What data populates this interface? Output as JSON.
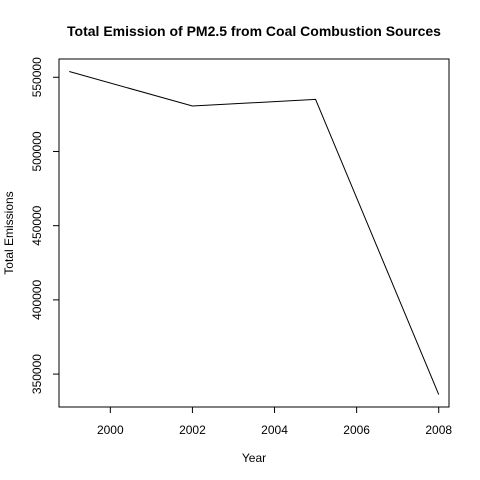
{
  "chart_data": {
    "type": "line",
    "title": "Total Emission of PM2.5 from Coal Combustion Sources",
    "xlabel": "Year",
    "ylabel": "Total Emissions",
    "x": [
      1999,
      2002,
      2005,
      2008
    ],
    "y": [
      553891,
      530620,
      535068,
      336230
    ],
    "xlim": [
      1998.75,
      2008.25
    ],
    "ylim": [
      327815,
      562306
    ],
    "xticks": [
      2000,
      2002,
      2004,
      2006,
      2008
    ],
    "yticks": [
      350000,
      400000,
      450000,
      500000,
      550000
    ],
    "grid": false,
    "legend": "none",
    "line_color": "#000000"
  }
}
